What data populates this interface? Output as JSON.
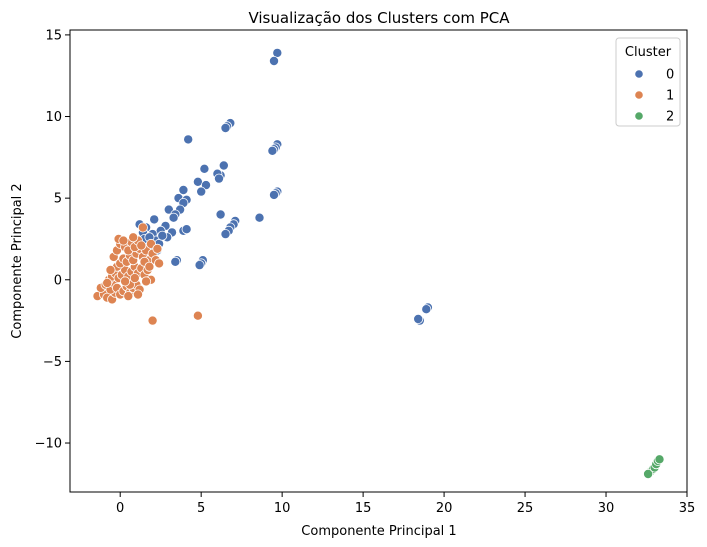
{
  "chart_data": {
    "type": "scatter",
    "title": "Visualização dos Clusters com PCA",
    "xlabel": "Componente Principal 1",
    "ylabel": "Componente Principal 2",
    "xlim": [
      -3.1,
      35
    ],
    "ylim": [
      -13,
      15.3
    ],
    "xticks": [
      0,
      5,
      10,
      15,
      20,
      25,
      30,
      35
    ],
    "yticks": [
      -10,
      -5,
      0,
      5,
      10,
      15
    ],
    "xtick_labels": [
      "0",
      "5",
      "10",
      "15",
      "20",
      "25",
      "30",
      "35"
    ],
    "ytick_labels": [
      "−10",
      "−5",
      "0",
      "5",
      "10",
      "15"
    ],
    "grid": false,
    "legend": {
      "title": "Cluster",
      "position": "top-right"
    },
    "series": [
      {
        "name": "0",
        "color": "#4c72b0",
        "points": [
          [
            9.7,
            13.9
          ],
          [
            9.5,
            13.4
          ],
          [
            6.8,
            9.6
          ],
          [
            6.6,
            9.4
          ],
          [
            6.5,
            9.3
          ],
          [
            4.2,
            8.6
          ],
          [
            9.7,
            8.3
          ],
          [
            9.6,
            8.1
          ],
          [
            9.5,
            8.0
          ],
          [
            9.4,
            7.9
          ],
          [
            6.4,
            7.0
          ],
          [
            6.2,
            6.4
          ],
          [
            6.0,
            6.5
          ],
          [
            6.1,
            6.2
          ],
          [
            5.2,
            6.8
          ],
          [
            4.8,
            6.0
          ],
          [
            5.3,
            5.8
          ],
          [
            5.0,
            5.4
          ],
          [
            9.7,
            5.4
          ],
          [
            9.6,
            5.3
          ],
          [
            9.5,
            5.2
          ],
          [
            3.9,
            5.5
          ],
          [
            3.6,
            5.0
          ],
          [
            4.1,
            4.9
          ],
          [
            3.9,
            4.7
          ],
          [
            3.7,
            4.3
          ],
          [
            3.0,
            4.3
          ],
          [
            3.4,
            4.0
          ],
          [
            6.2,
            4.0
          ],
          [
            8.6,
            3.8
          ],
          [
            7.1,
            3.6
          ],
          [
            7.0,
            3.4
          ],
          [
            6.8,
            3.2
          ],
          [
            6.7,
            3.0
          ],
          [
            6.5,
            2.8
          ],
          [
            3.3,
            3.8
          ],
          [
            2.1,
            3.7
          ],
          [
            1.2,
            3.4
          ],
          [
            2.8,
            3.3
          ],
          [
            1.6,
            3.2
          ],
          [
            2.5,
            3.0
          ],
          [
            3.2,
            2.9
          ],
          [
            3.9,
            3.0
          ],
          [
            4.1,
            3.1
          ],
          [
            1.4,
            2.9
          ],
          [
            2.0,
            2.8
          ],
          [
            2.9,
            2.6
          ],
          [
            2.2,
            2.4
          ],
          [
            1.7,
            2.3
          ],
          [
            2.4,
            2.2
          ],
          [
            1.9,
            2.0
          ],
          [
            2.3,
            1.8
          ],
          [
            2.0,
            1.5
          ],
          [
            3.5,
            1.2
          ],
          [
            3.4,
            1.1
          ],
          [
            5.1,
            1.2
          ],
          [
            5.0,
            1.0
          ],
          [
            4.9,
            0.9
          ],
          [
            1.5,
            2.5
          ],
          [
            1.8,
            2.6
          ],
          [
            2.6,
            2.7
          ],
          [
            18.5,
            -2.5
          ],
          [
            18.4,
            -2.4
          ],
          [
            19.0,
            -1.7
          ],
          [
            18.9,
            -1.8
          ]
        ]
      },
      {
        "name": "1",
        "color": "#dd8452",
        "points": [
          [
            -1.4,
            -1.0
          ],
          [
            -1.0,
            -0.9
          ],
          [
            -0.8,
            -1.1
          ],
          [
            -0.5,
            -1.2
          ],
          [
            -0.3,
            -0.8
          ],
          [
            -1.2,
            -0.5
          ],
          [
            -0.9,
            -0.3
          ],
          [
            -0.6,
            -0.6
          ],
          [
            -0.4,
            -0.2
          ],
          [
            -0.2,
            -0.5
          ],
          [
            0.0,
            -0.9
          ],
          [
            0.2,
            -0.7
          ],
          [
            0.4,
            -0.4
          ],
          [
            0.6,
            -0.8
          ],
          [
            0.8,
            -0.5
          ],
          [
            1.0,
            -0.3
          ],
          [
            -0.7,
            0.0
          ],
          [
            -0.5,
            0.2
          ],
          [
            -0.3,
            0.4
          ],
          [
            -0.1,
            0.1
          ],
          [
            0.1,
            0.3
          ],
          [
            0.3,
            0.6
          ],
          [
            0.5,
            0.2
          ],
          [
            0.7,
            0.5
          ],
          [
            0.9,
            0.8
          ],
          [
            1.1,
            0.4
          ],
          [
            1.3,
            0.7
          ],
          [
            1.5,
            0.3
          ],
          [
            1.7,
            0.6
          ],
          [
            -0.2,
            0.8
          ],
          [
            0.0,
            1.0
          ],
          [
            0.2,
            1.3
          ],
          [
            0.4,
            1.1
          ],
          [
            0.6,
            1.5
          ],
          [
            0.8,
            1.2
          ],
          [
            1.0,
            1.6
          ],
          [
            1.2,
            1.9
          ],
          [
            1.4,
            1.4
          ],
          [
            1.6,
            1.8
          ],
          [
            1.8,
            1.2
          ],
          [
            2.0,
            1.6
          ],
          [
            -0.4,
            1.4
          ],
          [
            -0.2,
            1.8
          ],
          [
            0.0,
            2.2
          ],
          [
            0.3,
            2.0
          ],
          [
            0.5,
            1.8
          ],
          [
            0.7,
            2.3
          ],
          [
            0.9,
            2.0
          ],
          [
            1.1,
            2.4
          ],
          [
            1.3,
            2.1
          ],
          [
            1.5,
            1.1
          ],
          [
            1.8,
            0.8
          ],
          [
            2.2,
            1.2
          ],
          [
            2.4,
            1.0
          ],
          [
            -0.1,
            2.5
          ],
          [
            0.2,
            2.4
          ],
          [
            1.4,
            3.2
          ],
          [
            1.2,
            -0.6
          ],
          [
            0.6,
            -0.3
          ],
          [
            1.9,
            0.0
          ],
          [
            1.1,
            -0.9
          ],
          [
            0.5,
            -1.0
          ],
          [
            1.6,
            -0.1
          ],
          [
            2.0,
            -2.5
          ],
          [
            4.8,
            -2.2
          ],
          [
            -0.8,
            -0.2
          ],
          [
            0.3,
            -0.1
          ],
          [
            0.9,
            0.1
          ],
          [
            -0.6,
            0.6
          ],
          [
            1.9,
            2.2
          ],
          [
            2.3,
            1.9
          ],
          [
            0.8,
            2.6
          ]
        ]
      },
      {
        "name": "2",
        "color": "#55a868",
        "points": [
          [
            32.7,
            -11.8
          ],
          [
            32.8,
            -11.7
          ],
          [
            32.9,
            -11.6
          ],
          [
            33.0,
            -11.5
          ],
          [
            33.1,
            -11.3
          ],
          [
            33.2,
            -11.1
          ],
          [
            33.3,
            -11.0
          ],
          [
            32.6,
            -11.9
          ]
        ]
      }
    ]
  }
}
